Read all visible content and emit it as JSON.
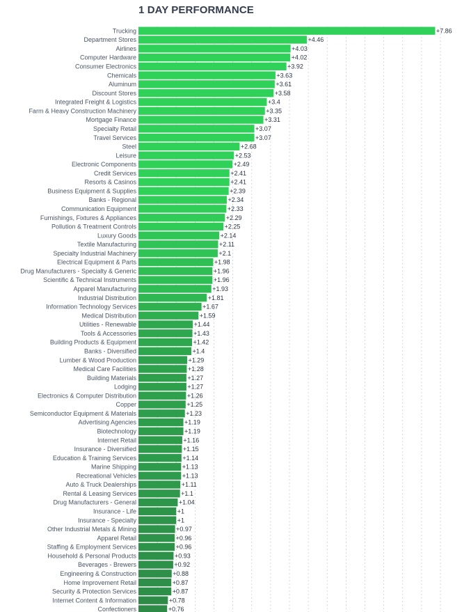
{
  "chart_data": {
    "type": "bar",
    "orientation": "horizontal",
    "title": "1 DAY PERFORMANCE",
    "xlabel": "",
    "ylabel": "",
    "xlim": [
      0,
      8
    ],
    "grid": true,
    "value_prefix": "+",
    "categories": [
      "Trucking",
      "Department Stores",
      "Airlines",
      "Computer Hardware",
      "Consumer Electronics",
      "Chemicals",
      "Aluminum",
      "Discount Stores",
      "Integrated Freight & Logistics",
      "Farm & Heavy Construction Machinery",
      "Mortgage Finance",
      "Specialty Retail",
      "Travel Services",
      "Steel",
      "Leisure",
      "Electronic Components",
      "Credit Services",
      "Resorts & Casinos",
      "Business Equipment & Supplies",
      "Banks - Regional",
      "Communication Equipment",
      "Furnishings, Fixtures & Appliances",
      "Pollution & Treatment Controls",
      "Luxury Goods",
      "Textile Manufacturing",
      "Specialty Industrial Machinery",
      "Electrical Equipment & Parts",
      "Drug Manufacturers - Specialty & Generic",
      "Scientific & Technical Instruments",
      "Apparel Manufacturing",
      "Industrial Distribution",
      "Information Technology Services",
      "Medical Distribution",
      "Utilities - Renewable",
      "Tools & Accessories",
      "Building Products & Equipment",
      "Banks - Diversified",
      "Lumber & Wood Production",
      "Medical Care Facilities",
      "Building Materials",
      "Lodging",
      "Electronics & Computer Distribution",
      "Copper",
      "Semiconductor Equipment & Materials",
      "Advertising Agencies",
      "Biotechnology",
      "Internet Retail",
      "Insurance - Diversified",
      "Education & Training Services",
      "Marine Shipping",
      "Recreational Vehicles",
      "Auto & Truck Dealerships",
      "Rental & Leasing Services",
      "Drug Manufacturers - General",
      "Insurance - Life",
      "Insurance - Specialty",
      "Other Industrial Metals & Mining",
      "Apparel Retail",
      "Staffing & Employment Services",
      "Household & Personal Products",
      "Beverages - Brewers",
      "Engineering & Construction",
      "Home Improvement Retail",
      "Security & Protection Services",
      "Internet Content & Information",
      "Confectioners"
    ],
    "values": [
      7.86,
      4.46,
      4.03,
      4.02,
      3.92,
      3.63,
      3.61,
      3.58,
      3.4,
      3.35,
      3.31,
      3.07,
      3.07,
      2.68,
      2.53,
      2.49,
      2.41,
      2.41,
      2.39,
      2.34,
      2.33,
      2.29,
      2.25,
      2.14,
      2.11,
      2.1,
      1.98,
      1.96,
      1.96,
      1.93,
      1.81,
      1.67,
      1.59,
      1.44,
      1.43,
      1.42,
      1.4,
      1.29,
      1.28,
      1.27,
      1.27,
      1.26,
      1.25,
      1.23,
      1.19,
      1.19,
      1.16,
      1.15,
      1.14,
      1.13,
      1.13,
      1.11,
      1.1,
      1.04,
      1,
      1,
      0.97,
      0.96,
      0.96,
      0.93,
      0.92,
      0.88,
      0.87,
      0.87,
      0.78,
      0.76
    ],
    "colors": {
      "high": "#30d158",
      "low": "#2d8a47",
      "grid": "#c9ced6"
    }
  }
}
